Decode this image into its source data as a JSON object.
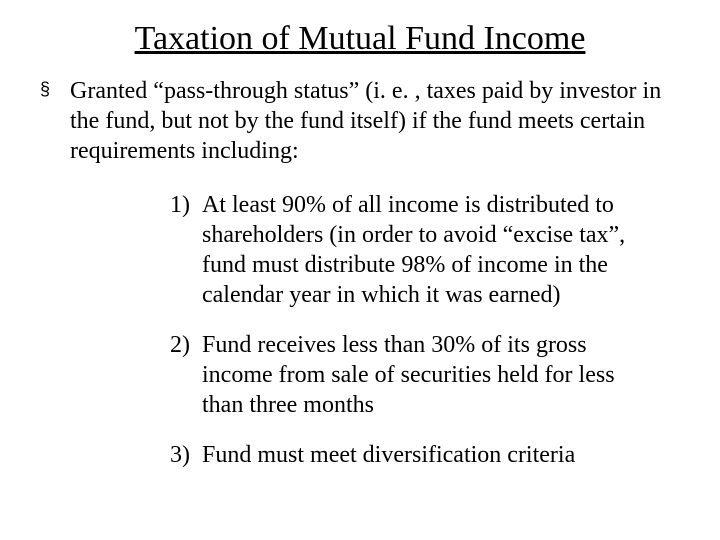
{
  "title": "Taxation of Mutual Fund Income",
  "bullet": {
    "marker": "§",
    "text": "Granted “pass-through status” (i. e. , taxes paid by investor in the fund, but not by the fund itself) if the fund meets certain requirements including:"
  },
  "items": [
    {
      "num": "1)",
      "text": "At least 90% of all income is distributed to shareholders (in order to avoid “excise tax”, fund must distribute 98% of income in the calendar year in which it was earned)"
    },
    {
      "num": "2)",
      "text": "Fund receives less than 30% of its gross income from sale of securities held for less than three months"
    },
    {
      "num": "3)",
      "text": "Fund must meet diversification criteria"
    }
  ],
  "colors": {
    "background": "#ffffff",
    "text": "#000000"
  },
  "typography": {
    "title_fontsize": 34,
    "body_fontsize": 24,
    "font_family": "Times New Roman"
  }
}
